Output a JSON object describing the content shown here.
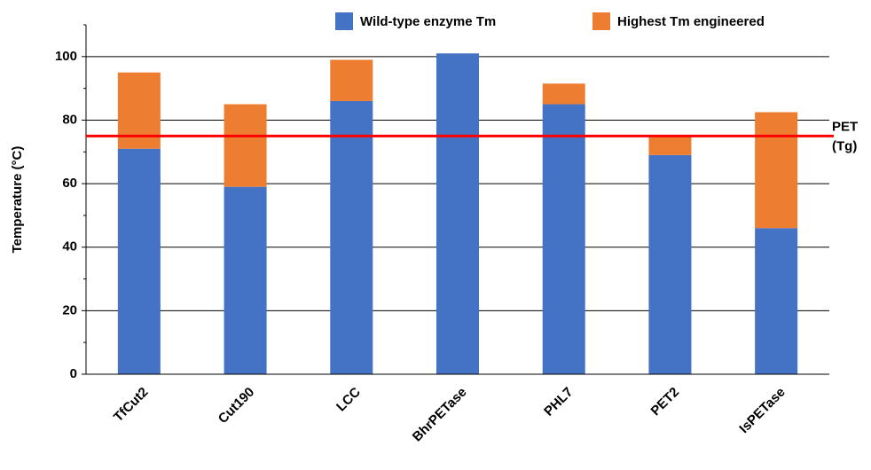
{
  "chart_data": {
    "type": "stacked_bar",
    "y_label": "Temperature (°C)",
    "categories": [
      "TfCut2",
      "Cut190",
      "LCC",
      "BhrPETase",
      "PHL7",
      "PET2",
      "IsPETase"
    ],
    "series": [
      {
        "name": "Wild-type enzyme Tm",
        "color": "#4472c4",
        "values": [
          71,
          59,
          86,
          101,
          85,
          69,
          46
        ]
      },
      {
        "name": "Highest Tm engineered",
        "color": "#ed7d31",
        "values": [
          24,
          26,
          13,
          0,
          6.5,
          6,
          36.5
        ]
      }
    ],
    "ylim": [
      0,
      110
    ],
    "yticks": [
      0,
      20,
      40,
      60,
      80,
      100
    ],
    "minor_yticks": [
      10,
      30,
      50,
      70,
      90,
      110
    ],
    "grid": true,
    "reference_line": {
      "value": 75,
      "color": "#ff0000",
      "label_lines": [
        "PET",
        "(Tg)"
      ]
    }
  }
}
